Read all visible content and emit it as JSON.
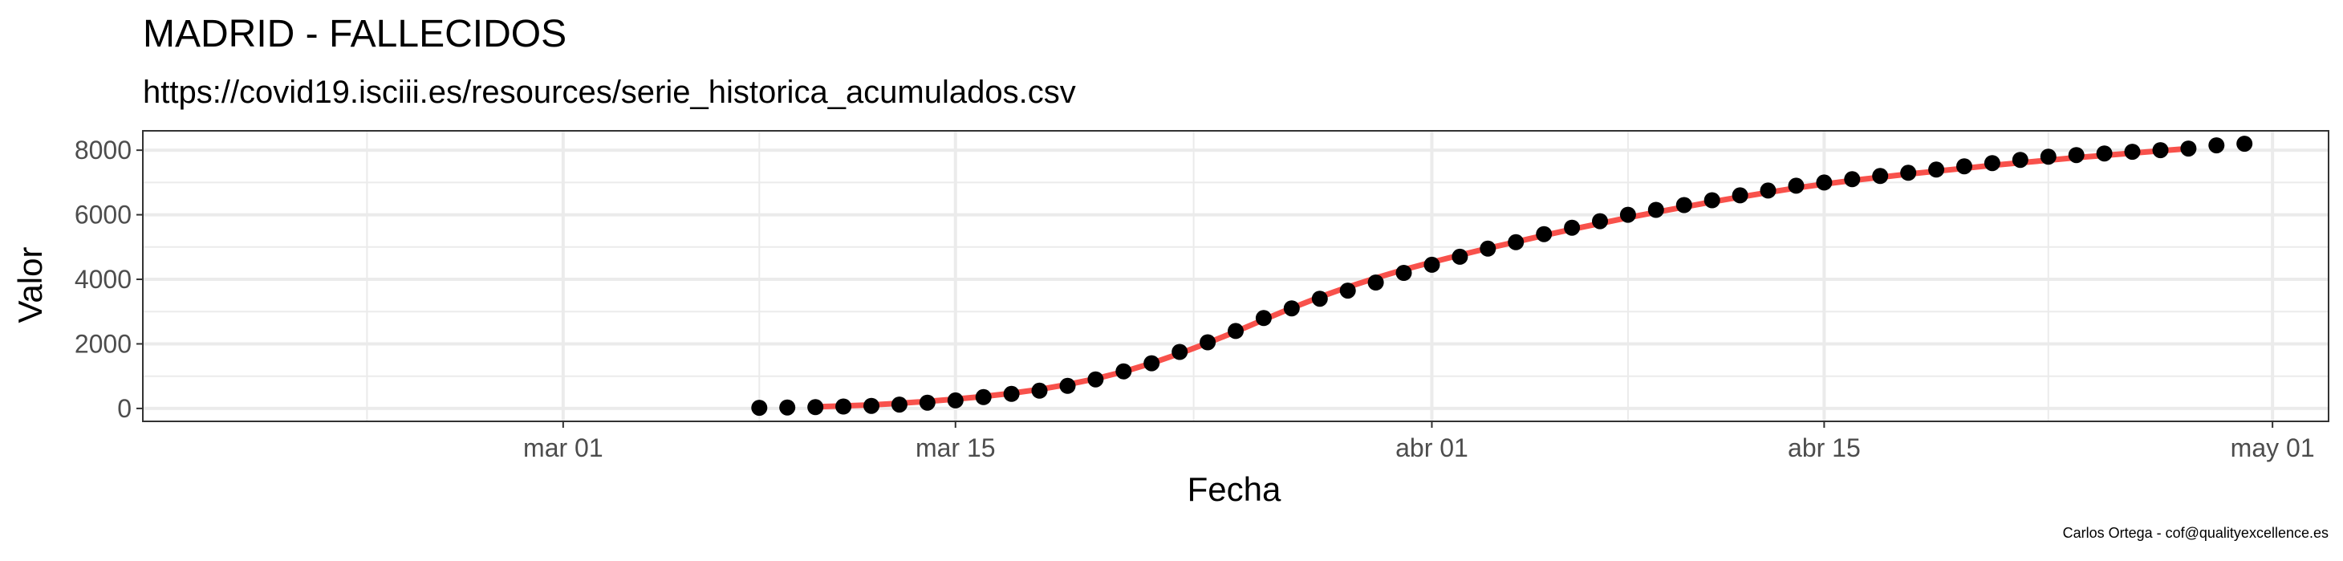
{
  "chart_data": {
    "type": "scatter",
    "title": "MADRID - FALLECIDOS",
    "subtitle": "https://covid19.isciii.es/resources/serie_historica_acumulados.csv",
    "xlabel": "Fecha",
    "ylabel": "Valor",
    "caption": "Carlos Ortega - cof@qualityexcellence.es",
    "x_ticks": [
      {
        "date": "2020-03-01",
        "label": "mar 01"
      },
      {
        "date": "2020-03-15",
        "label": "mar 15"
      },
      {
        "date": "2020-04-01",
        "label": "abr 01"
      },
      {
        "date": "2020-04-15",
        "label": "abr 15"
      },
      {
        "date": "2020-05-01",
        "label": "may 01"
      }
    ],
    "y_ticks": [
      0,
      2000,
      4000,
      6000,
      8000
    ],
    "xlim": [
      "2020-02-15",
      "2020-05-03"
    ],
    "ylim": [
      -400,
      8600
    ],
    "grid": true,
    "colors": {
      "points": "#000000",
      "line": "#f8514b",
      "grid": "#ebebeb",
      "panel_border": "#333333"
    },
    "series": [
      {
        "type": "points",
        "x": [
          "2020-03-08",
          "2020-03-09",
          "2020-03-10",
          "2020-03-11",
          "2020-03-12",
          "2020-03-13",
          "2020-03-14",
          "2020-03-15",
          "2020-03-16",
          "2020-03-17",
          "2020-03-18",
          "2020-03-19",
          "2020-03-20",
          "2020-03-21",
          "2020-03-22",
          "2020-03-23",
          "2020-03-24",
          "2020-03-25",
          "2020-03-26",
          "2020-03-27",
          "2020-03-28",
          "2020-03-29",
          "2020-03-30",
          "2020-03-31",
          "2020-04-01",
          "2020-04-02",
          "2020-04-03",
          "2020-04-04",
          "2020-04-05",
          "2020-04-06",
          "2020-04-07",
          "2020-04-08",
          "2020-04-09",
          "2020-04-10",
          "2020-04-11",
          "2020-04-12",
          "2020-04-13",
          "2020-04-14",
          "2020-04-15",
          "2020-04-16",
          "2020-04-17",
          "2020-04-18",
          "2020-04-19",
          "2020-04-20",
          "2020-04-21",
          "2020-04-22",
          "2020-04-23",
          "2020-04-24",
          "2020-04-25",
          "2020-04-26",
          "2020-04-27",
          "2020-04-28",
          "2020-04-29",
          "2020-04-30"
        ],
        "y": [
          20,
          30,
          40,
          60,
          80,
          120,
          180,
          250,
          350,
          450,
          550,
          700,
          900,
          1150,
          1400,
          1750,
          2050,
          2400,
          2800,
          3100,
          3400,
          3650,
          3900,
          4200,
          4450,
          4700,
          4950,
          5150,
          5400,
          5600,
          5800,
          6000,
          6150,
          6300,
          6450,
          6600,
          6750,
          6900,
          7000,
          7100,
          7200,
          7300,
          7400,
          7500,
          7600,
          7700,
          7800,
          7850,
          7900,
          7950,
          8000,
          8050,
          8150,
          8200
        ]
      },
      {
        "type": "fit",
        "x": [
          "2020-03-10",
          "2020-03-11",
          "2020-03-12",
          "2020-03-13",
          "2020-03-14",
          "2020-03-15",
          "2020-03-16",
          "2020-03-17",
          "2020-03-18",
          "2020-03-19",
          "2020-03-20",
          "2020-03-21",
          "2020-03-22",
          "2020-03-23",
          "2020-03-24",
          "2020-03-25",
          "2020-03-26",
          "2020-03-27",
          "2020-03-28",
          "2020-03-29",
          "2020-03-30",
          "2020-03-31",
          "2020-04-01",
          "2020-04-02",
          "2020-04-03",
          "2020-04-04",
          "2020-04-05",
          "2020-04-06",
          "2020-04-07",
          "2020-04-08",
          "2020-04-09",
          "2020-04-10",
          "2020-04-11",
          "2020-04-12",
          "2020-04-13",
          "2020-04-14",
          "2020-04-15",
          "2020-04-16",
          "2020-04-17",
          "2020-04-18",
          "2020-04-19",
          "2020-04-20",
          "2020-04-21",
          "2020-04-22",
          "2020-04-23",
          "2020-04-24",
          "2020-04-25",
          "2020-04-26",
          "2020-04-27",
          "2020-04-28"
        ],
        "y": [
          50,
          80,
          110,
          160,
          220,
          290,
          370,
          470,
          590,
          740,
          920,
          1140,
          1400,
          1700,
          2030,
          2380,
          2750,
          3110,
          3450,
          3760,
          4040,
          4300,
          4530,
          4750,
          4960,
          5160,
          5360,
          5550,
          5730,
          5910,
          6080,
          6240,
          6400,
          6550,
          6690,
          6830,
          6950,
          7060,
          7160,
          7260,
          7350,
          7440,
          7530,
          7610,
          7690,
          7770,
          7840,
          7910,
          7980,
          8050
        ]
      }
    ]
  }
}
